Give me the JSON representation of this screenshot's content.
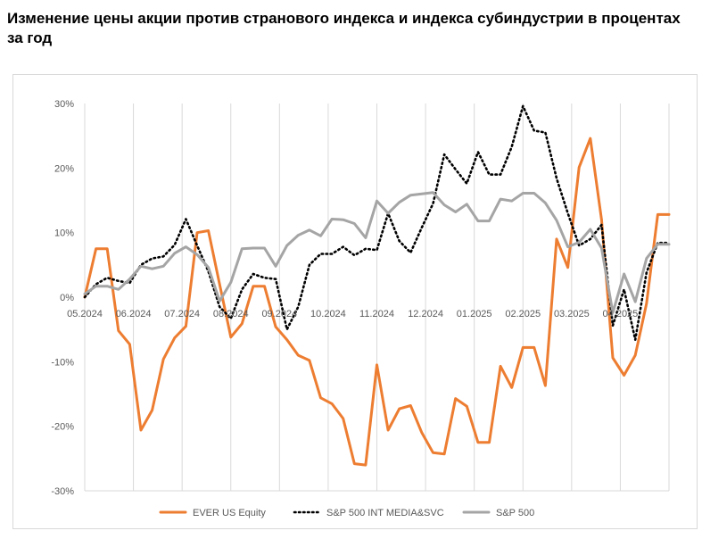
{
  "title": "Изменение цены акции против странового индекса и индекса субиндустрии в процентах за год",
  "chart_data": {
    "type": "line",
    "title": "Изменение цены акции против странового индекса и индекса субиндустрии в процентах за год",
    "xlabel": "",
    "ylabel": "",
    "ylim": [
      -30,
      30
    ],
    "y_ticks": [
      "30%",
      "20%",
      "10%",
      "0%",
      "-10%",
      "-20%",
      "-30%"
    ],
    "x_tick_labels": [
      "05.2024",
      "06.2024",
      "07.2024",
      "08.2024",
      "09.2024",
      "10.2024",
      "11.2024",
      "12.2024",
      "01.2025",
      "02.2025",
      "03.2025",
      "04.2025"
    ],
    "grid": "vertical",
    "legend_position": "bottom",
    "series": [
      {
        "name": "EVER US Equity",
        "color": "#ED7D31",
        "style": "solid",
        "values": [
          0,
          7.5,
          7.5,
          -5.2,
          -7.3,
          -20.6,
          -17.5,
          -9.6,
          -6.3,
          -4.5,
          10,
          10.3,
          2,
          -6.2,
          -4.1,
          1.7,
          1.7,
          -4.6,
          -6.6,
          -9,
          -9.8,
          -15.6,
          -16.5,
          -18.8,
          -25.8,
          -26,
          -10.5,
          -20.6,
          -17.3,
          -16.8,
          -21,
          -24.1,
          -24.3,
          -15.7,
          -16.9,
          -22.5,
          -22.5,
          -10.7,
          -14,
          -7.8,
          -7.8,
          -13.7,
          9,
          4.6,
          20.1,
          24.6,
          12,
          -9.4,
          -12.1,
          -9,
          -1,
          12.8,
          12.8
        ]
      },
      {
        "name": "S&P 500 INT MEDIA&SVC",
        "color": "#000000",
        "style": "dotted",
        "values": [
          0,
          2,
          3,
          2.5,
          2.2,
          5,
          6,
          6.3,
          8.1,
          12.1,
          8,
          4,
          -1.5,
          -3.3,
          1.2,
          3.6,
          3,
          2.8,
          -5,
          -1.5,
          5,
          6.7,
          6.7,
          7.8,
          6.5,
          7.5,
          7.3,
          13,
          8.7,
          6.9,
          10.8,
          14.5,
          22.1,
          19.8,
          17.6,
          22.5,
          19,
          19,
          23.3,
          29.6,
          25.8,
          25.5,
          18.4,
          13,
          8,
          9,
          11.2,
          -4.4,
          1.2,
          -6.6,
          3.8,
          8.4,
          8.4
        ]
      },
      {
        "name": "S&P 500",
        "color": "#A5A5A5",
        "style": "solid",
        "values": [
          0.5,
          1.7,
          1.7,
          1.2,
          2.8,
          4.8,
          4.4,
          4.8,
          6.8,
          7.8,
          6.6,
          4.6,
          -0.6,
          2.3,
          7.5,
          7.6,
          7.6,
          4.8,
          8,
          9.6,
          10.4,
          9.5,
          12.1,
          12,
          11.4,
          9.2,
          14.9,
          13,
          14.7,
          15.8,
          16,
          16.2,
          14.3,
          13.2,
          14.4,
          11.8,
          11.8,
          15.2,
          14.9,
          16.1,
          16.1,
          14.6,
          11.9,
          7.8,
          8.5,
          10.5,
          7.6,
          -2.4,
          3.6,
          -0.7,
          6,
          8.2,
          8.2
        ]
      }
    ]
  }
}
